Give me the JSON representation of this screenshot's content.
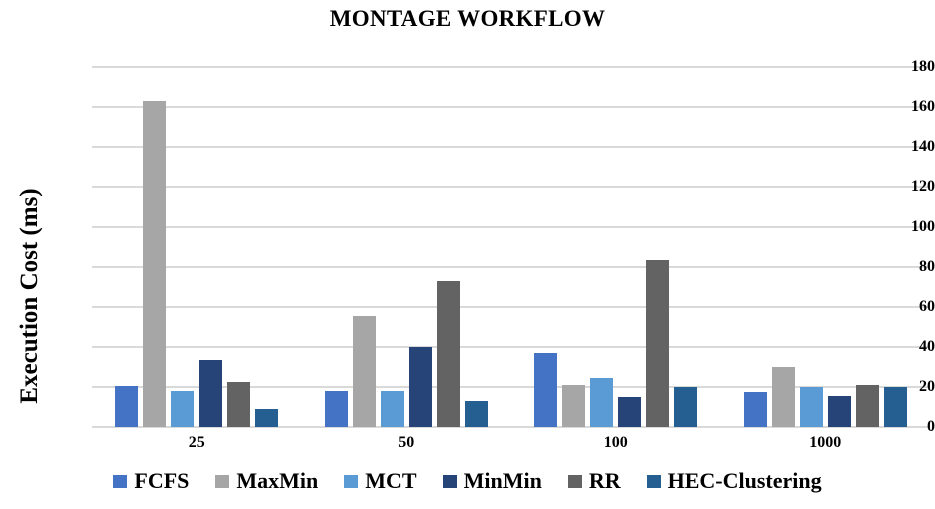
{
  "chart_data": {
    "type": "bar",
    "title": "MONTAGE WORKFLOW",
    "ylabel": "Execution Cost (ms)",
    "xlabel": "",
    "categories": [
      "25",
      "50",
      "100",
      "1000"
    ],
    "series": [
      {
        "name": "FCFS",
        "color": "#4472C4",
        "values": [
          20.5,
          18,
          37,
          17.5
        ]
      },
      {
        "name": "MaxMin",
        "color": "#A6A6A6",
        "values": [
          163,
          55.5,
          21,
          30
        ]
      },
      {
        "name": "MCT",
        "color": "#5B9BD5",
        "values": [
          18,
          18,
          24.5,
          20
        ]
      },
      {
        "name": "MinMin",
        "color": "#264478",
        "values": [
          33.5,
          40,
          15,
          15.5
        ]
      },
      {
        "name": "RR",
        "color": "#636363",
        "values": [
          22.5,
          73,
          83.5,
          21
        ]
      },
      {
        "name": "HEC-Clustering",
        "color": "#255E91",
        "values": [
          9,
          13,
          20,
          20
        ]
      }
    ],
    "ylim": [
      0,
      180
    ],
    "yticks": [
      0,
      20,
      40,
      60,
      80,
      100,
      120,
      140,
      160,
      180
    ],
    "grid": true,
    "gridline_color": "#D9D9D9",
    "legend_position": "bottom",
    "background": "#FFFFFF",
    "text_color": "#000000"
  }
}
